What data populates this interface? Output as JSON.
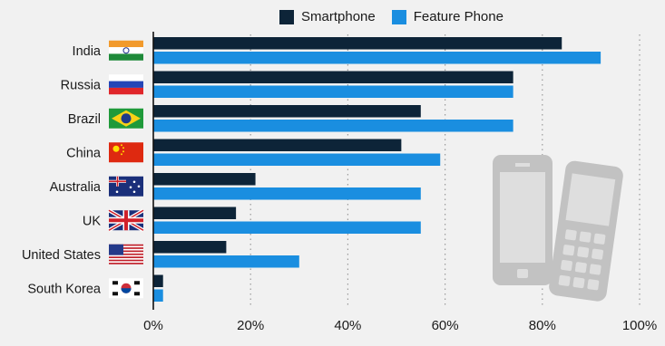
{
  "chart_data": {
    "type": "bar",
    "orientation": "horizontal",
    "categories": [
      "India",
      "Russia",
      "Brazil",
      "China",
      "Australia",
      "UK",
      "United States",
      "South Korea"
    ],
    "series": [
      {
        "name": "Smartphone",
        "color": "#0d2438",
        "values": [
          84,
          74,
          55,
          51,
          21,
          17,
          15,
          2
        ]
      },
      {
        "name": "Feature Phone",
        "color": "#1a8ee0",
        "values": [
          92,
          74,
          74,
          59,
          55,
          55,
          30,
          2
        ]
      }
    ],
    "x_ticks": [
      "0%",
      "20%",
      "40%",
      "60%",
      "80%",
      "100%"
    ],
    "xlim": [
      0,
      100
    ],
    "grid": "vertical-dotted",
    "legend_position": "top",
    "category_icons": [
      "india-flag-icon",
      "russia-flag-icon",
      "brazil-flag-icon",
      "china-flag-icon",
      "australia-flag-icon",
      "uk-flag-icon",
      "us-flag-icon",
      "south-korea-flag-icon"
    ],
    "decoration": "mobile-phones-icon"
  }
}
